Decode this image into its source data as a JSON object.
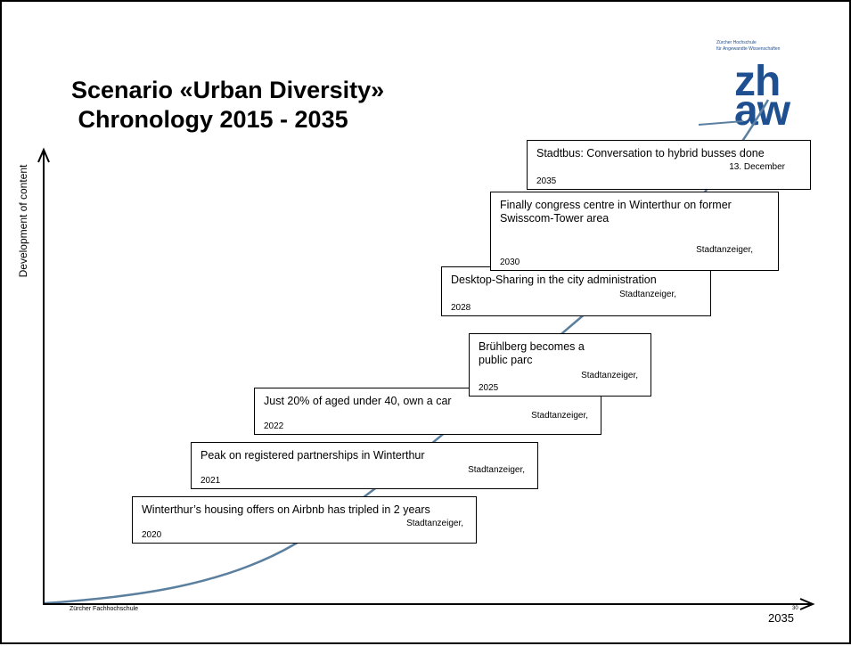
{
  "slide": {
    "title_line1": "Scenario «Urban Diversity»",
    "title_line2": " Chronology 2015 - 2035",
    "y_axis_label": "Development of content",
    "x_axis_tick": "2035",
    "footer_institution": "Zürcher Fachhochschule",
    "page_number": "30"
  },
  "logo": {
    "institution_text": "Zürcher Hochschule\nfür Angewandte Wissenschaften",
    "mark_line1": "zh",
    "mark_line2": "aw"
  },
  "events": [
    {
      "title": "Winterthur’s housing offers on Airbnb has tripled in 2 years",
      "source": "Stadtanzeiger,",
      "year": "2020"
    },
    {
      "title": "Peak on registered partnerships in Winterthur",
      "source": "Stadtanzeiger,",
      "year": "2021"
    },
    {
      "title": "Just 20% of aged under 40, own a car",
      "source": "Stadtanzeiger,",
      "year": "2022"
    },
    {
      "title": "Brühlberg becomes a public parc",
      "source": "Stadtanzeiger,",
      "year": "2025"
    },
    {
      "title": "Desktop-Sharing in the city administration",
      "source": "Stadtanzeiger,",
      "year": "2028"
    },
    {
      "title": "Finally congress centre in Winterthur on former Swisscom-Tower area",
      "source": "Stadtanzeiger,",
      "year": "2030"
    },
    {
      "title": "Stadtbus: Conversation to hybrid busses done",
      "source": "13. December",
      "year": "2035"
    }
  ],
  "colors": {
    "curve": "#5b7f9e",
    "logo": "#1d4f91",
    "axis": "#000000"
  }
}
